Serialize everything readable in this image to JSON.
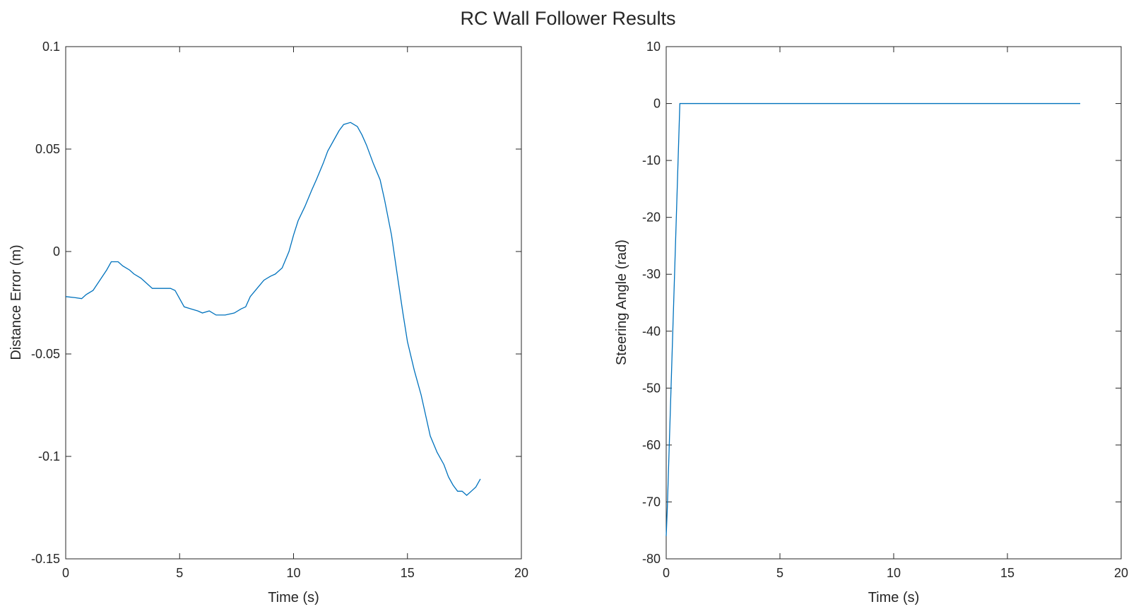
{
  "figure": {
    "title": "RC Wall Follower Results",
    "line_color": "#0072BD"
  },
  "chart_data": [
    {
      "type": "line",
      "title": "",
      "xlabel": "Time (s)",
      "ylabel": "Distance Error (m)",
      "xlim": [
        0,
        20
      ],
      "ylim": [
        -0.15,
        0.1
      ],
      "xticks": [
        0,
        5,
        10,
        15,
        20
      ],
      "xtick_labels": [
        "0",
        "5",
        "10",
        "15",
        "20"
      ],
      "yticks": [
        -0.15,
        -0.1,
        -0.05,
        0,
        0.05,
        0.1
      ],
      "ytick_labels": [
        "-0.15",
        "-0.1",
        "-0.05",
        "0",
        "0.05",
        "0.1"
      ],
      "grid": false,
      "series": [
        {
          "x": [
            0,
            0.4,
            0.7,
            0.9,
            1.2,
            1.5,
            1.8,
            2.0,
            2.3,
            2.5,
            2.8,
            3.0,
            3.3,
            3.6,
            3.8,
            4.0,
            4.3,
            4.6,
            4.8,
            5.0,
            5.2,
            5.5,
            5.8,
            6.0,
            6.3,
            6.6,
            7.0,
            7.4,
            7.7,
            7.9,
            8.1,
            8.4,
            8.7,
            9.0,
            9.2,
            9.5,
            9.8,
            10.0,
            10.2,
            10.5,
            10.8,
            11.0,
            11.3,
            11.5,
            11.8,
            12.0,
            12.2,
            12.5,
            12.8,
            13.0,
            13.2,
            13.5,
            13.8,
            14.0,
            14.3,
            14.6,
            14.8,
            15.0,
            15.3,
            15.6,
            15.8,
            16.0,
            16.3,
            16.6,
            16.8,
            17.0,
            17.2,
            17.4,
            17.6,
            17.8,
            18.0,
            18.2
          ],
          "y": [
            -0.022,
            -0.0225,
            -0.023,
            -0.021,
            -0.019,
            -0.014,
            -0.009,
            -0.005,
            -0.005,
            -0.007,
            -0.009,
            -0.011,
            -0.013,
            -0.016,
            -0.018,
            -0.018,
            -0.018,
            -0.018,
            -0.019,
            -0.023,
            -0.027,
            -0.028,
            -0.029,
            -0.03,
            -0.029,
            -0.031,
            -0.031,
            -0.03,
            -0.028,
            -0.027,
            -0.022,
            -0.018,
            -0.014,
            -0.012,
            -0.011,
            -0.008,
            0.0,
            0.008,
            0.015,
            0.022,
            0.03,
            0.035,
            0.043,
            0.049,
            0.055,
            0.059,
            0.062,
            0.063,
            0.061,
            0.057,
            0.052,
            0.043,
            0.035,
            0.025,
            0.008,
            -0.015,
            -0.03,
            -0.044,
            -0.058,
            -0.07,
            -0.08,
            -0.09,
            -0.098,
            -0.104,
            -0.11,
            -0.114,
            -0.117,
            -0.117,
            -0.119,
            -0.117,
            -0.115,
            -0.111
          ]
        }
      ]
    },
    {
      "type": "line",
      "title": "",
      "xlabel": "Time (s)",
      "ylabel": "Steering Angle (rad)",
      "xlim": [
        0,
        20
      ],
      "ylim": [
        -80,
        10
      ],
      "xticks": [
        0,
        5,
        10,
        15,
        20
      ],
      "xtick_labels": [
        "0",
        "5",
        "10",
        "15",
        "20"
      ],
      "yticks": [
        -80,
        -70,
        -60,
        -50,
        -40,
        -30,
        -20,
        -10,
        0,
        10
      ],
      "ytick_labels": [
        "-80",
        "-70",
        "-60",
        "-50",
        "-40",
        "-30",
        "-20",
        "-10",
        "0",
        "10"
      ],
      "grid": false,
      "series": [
        {
          "x": [
            0.0,
            0.05,
            0.6,
            2.0,
            5.0,
            10.0,
            15.0,
            18.2
          ],
          "y": [
            -76,
            -71,
            0,
            0,
            0,
            0,
            0,
            0
          ]
        }
      ]
    }
  ]
}
